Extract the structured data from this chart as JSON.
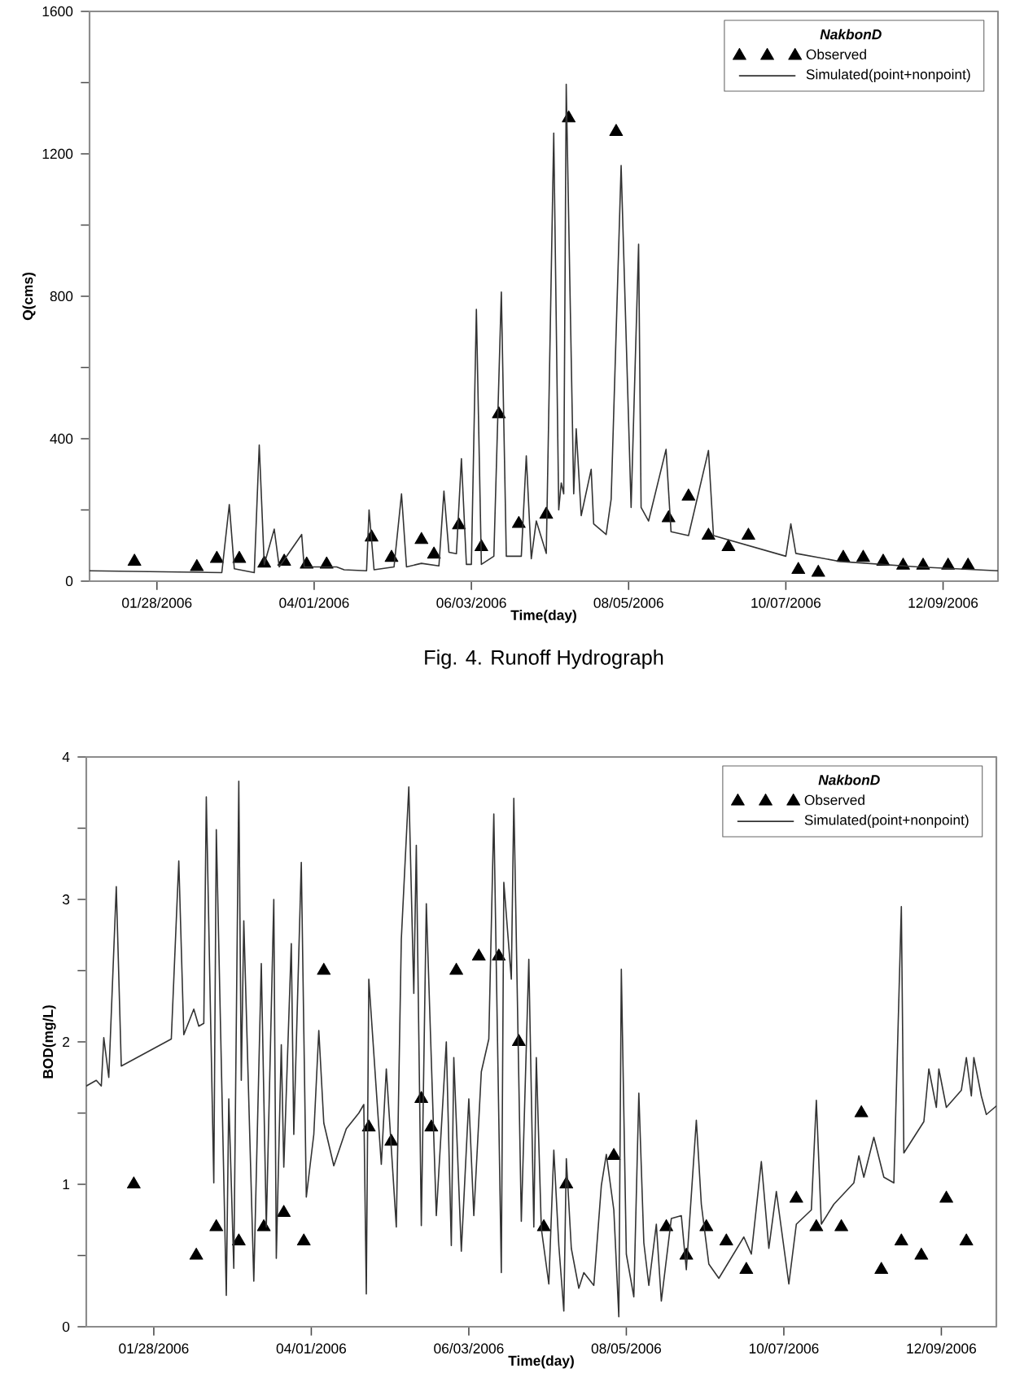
{
  "chart_data": [
    {
      "type": "line",
      "xlabel": "Time(day)",
      "ylabel": "Q(cms)",
      "legend_title": "NakbonD",
      "legend": "top right",
      "annotations": [
        "Fig. 4. Runoff Hydrograph"
      ],
      "xlim": [
        "2006-01-01",
        "2006-12-31"
      ],
      "xticks": [
        {
          "value": "2006-01-28",
          "label": "01/28/2006"
        },
        {
          "value": "2006-04-01",
          "label": "04/01/2006"
        },
        {
          "value": "2006-06-03",
          "label": "06/03/2006"
        },
        {
          "value": "2006-08-05",
          "label": "08/05/2006"
        },
        {
          "value": "2006-10-07",
          "label": "10/07/2006"
        },
        {
          "value": "2006-12-09",
          "label": "12/09/2006"
        }
      ],
      "ylim": [
        0,
        1600
      ],
      "yticks": [
        0,
        {
          "value": 200,
          "label": null
        },
        400,
        {
          "value": 600,
          "label": null
        },
        800,
        {
          "value": 1000,
          "label": null
        },
        1200,
        {
          "value": 1400,
          "label": null
        },
        1600
      ],
      "series": [
        {
          "name": "Observed",
          "type": "scatter",
          "marker": "triangle",
          "color": "#000000",
          "x": [
            "2006-01-19",
            "2006-02-13",
            "2006-02-21",
            "2006-03-02",
            "2006-03-12",
            "2006-03-20",
            "2006-03-29",
            "2006-04-06",
            "2006-04-24",
            "2006-05-02",
            "2006-05-14",
            "2006-05-19",
            "2006-05-29",
            "2006-06-07",
            "2006-06-14",
            "2006-06-22",
            "2006-07-03",
            "2006-07-12",
            "2006-07-31",
            "2006-08-21",
            "2006-08-29",
            "2006-09-06",
            "2006-09-14",
            "2006-09-22",
            "2006-10-12",
            "2006-10-20",
            "2006-10-30",
            "2006-11-07",
            "2006-11-15",
            "2006-11-23",
            "2006-12-01",
            "2006-12-11",
            "2006-12-19"
          ],
          "values": [
            55,
            40,
            63,
            63,
            50,
            55,
            47,
            47,
            123,
            66,
            116,
            75,
            157,
            96,
            469,
            161,
            187,
            1300,
            1262,
            177,
            238,
            128,
            96,
            128,
            32,
            24,
            66,
            66,
            55,
            44,
            44,
            44,
            44
          ]
        },
        {
          "name": "Simulated(point+nonpoint)",
          "marker": "none",
          "line_style": "solid",
          "color": "#333333",
          "x": [
            "2006-01-01",
            "2006-02-23",
            "2006-02-26",
            "2006-02-28",
            "2006-03-08",
            "2006-03-10",
            "2006-03-12",
            "2006-03-16",
            "2006-03-18",
            "2006-03-27",
            "2006-03-28",
            "2006-04-10",
            "2006-04-13",
            "2006-04-22",
            "2006-04-23",
            "2006-04-25",
            "2006-05-03",
            "2006-05-06",
            "2006-05-08",
            "2006-05-14",
            "2006-05-21",
            "2006-05-23",
            "2006-05-25",
            "2006-05-28",
            "2006-05-30",
            "2006-06-01",
            "2006-06-03",
            "2006-06-05",
            "2006-06-07",
            "2006-06-12",
            "2006-06-15",
            "2006-06-17",
            "2006-06-23",
            "2006-06-25",
            "2006-06-27",
            "2006-06-29",
            "2006-07-03",
            "2006-07-06",
            "2006-07-08",
            "2006-07-09",
            "2006-07-10",
            "2006-07-11",
            "2006-07-14",
            "2006-07-15",
            "2006-07-17",
            "2006-07-21",
            "2006-07-22",
            "2006-07-27",
            "2006-07-29",
            "2006-08-02",
            "2006-08-06",
            "2006-08-09",
            "2006-08-10",
            "2006-08-13",
            "2006-08-20",
            "2006-08-22",
            "2006-08-29",
            "2006-09-06",
            "2006-09-08",
            "2006-10-07",
            "2006-10-09",
            "2006-10-11",
            "2006-10-29",
            "2006-11-29",
            "2006-12-31"
          ],
          "values": [
            29,
            24,
            215,
            35,
            24,
            382,
            47,
            146,
            40,
            131,
            40,
            40,
            32,
            29,
            200,
            32,
            40,
            245,
            40,
            50,
            43,
            253,
            81,
            77,
            344,
            47,
            47,
            763,
            47,
            70,
            812,
            70,
            70,
            352,
            63,
            169,
            78,
            1258,
            200,
            276,
            245,
            1395,
            245,
            428,
            184,
            314,
            161,
            131,
            230,
            1167,
            207,
            946,
            207,
            169,
            370,
            139,
            128,
            367,
            128,
            70,
            161,
            78,
            55,
            40,
            29
          ]
        }
      ]
    },
    {
      "type": "line",
      "xlabel": "Time(day)",
      "ylabel": "BOD(mg/L)",
      "legend_title": "NakbonD",
      "legend": "top right",
      "xlim": [
        "2006-01-01",
        "2006-12-31"
      ],
      "xticks": [
        {
          "value": "2006-01-28",
          "label": "01/28/2006"
        },
        {
          "value": "2006-04-01",
          "label": "04/01/2006"
        },
        {
          "value": "2006-06-03",
          "label": "06/03/2006"
        },
        {
          "value": "2006-08-05",
          "label": "08/05/2006"
        },
        {
          "value": "2006-10-07",
          "label": "10/07/2006"
        },
        {
          "value": "2006-12-09",
          "label": "12/09/2006"
        }
      ],
      "ylim": [
        0,
        4
      ],
      "yticks": [
        0,
        {
          "value": 0.5,
          "label": null
        },
        1,
        {
          "value": 1.5,
          "label": null
        },
        2,
        {
          "value": 2.5,
          "label": null
        },
        3,
        {
          "value": 3.5,
          "label": null
        },
        4
      ],
      "series": [
        {
          "name": "Observed",
          "type": "scatter",
          "marker": "triangle",
          "color": "#000000",
          "x": [
            "2006-01-20",
            "2006-02-14",
            "2006-02-22",
            "2006-03-03",
            "2006-03-13",
            "2006-03-21",
            "2006-03-29",
            "2006-04-06",
            "2006-04-24",
            "2006-05-03",
            "2006-05-15",
            "2006-05-19",
            "2006-05-29",
            "2006-06-07",
            "2006-06-15",
            "2006-06-23",
            "2006-07-03",
            "2006-07-12",
            "2006-07-31",
            "2006-08-21",
            "2006-08-29",
            "2006-09-06",
            "2006-09-14",
            "2006-09-22",
            "2006-10-12",
            "2006-10-20",
            "2006-10-30",
            "2006-11-07",
            "2006-11-15",
            "2006-11-23",
            "2006-12-01",
            "2006-12-11",
            "2006-12-19"
          ],
          "values": [
            1.0,
            0.5,
            0.7,
            0.6,
            0.7,
            0.8,
            0.6,
            2.5,
            1.4,
            1.3,
            1.6,
            1.4,
            2.5,
            2.6,
            2.6,
            2.0,
            0.7,
            1.0,
            1.2,
            0.7,
            0.5,
            0.7,
            0.6,
            0.4,
            0.9,
            0.7,
            0.7,
            1.5,
            0.4,
            0.6,
            0.5,
            0.9,
            0.6
          ]
        },
        {
          "name": "Simulated(point+nonpoint)",
          "marker": "none",
          "line_style": "solid",
          "color": "#333333",
          "x": [
            "2006-01-01",
            "2006-01-05",
            "2006-01-07",
            "2006-01-08",
            "2006-01-10",
            "2006-01-13",
            "2006-01-15",
            "2006-02-04",
            "2006-02-07",
            "2006-02-09",
            "2006-02-13",
            "2006-02-15",
            "2006-02-17",
            "2006-02-18",
            "2006-02-21",
            "2006-02-22",
            "2006-02-26",
            "2006-02-27",
            "2006-03-01",
            "2006-03-03",
            "2006-03-04",
            "2006-03-05",
            "2006-03-09",
            "2006-03-12",
            "2006-03-14",
            "2006-03-17",
            "2006-03-18",
            "2006-03-20",
            "2006-03-21",
            "2006-03-24",
            "2006-03-25",
            "2006-03-28",
            "2006-03-30",
            "2006-04-02",
            "2006-04-04",
            "2006-04-06",
            "2006-04-10",
            "2006-04-15",
            "2006-04-20",
            "2006-04-22",
            "2006-04-23",
            "2006-04-24",
            "2006-04-29",
            "2006-05-01",
            "2006-05-05",
            "2006-05-07",
            "2006-05-10",
            "2006-05-12",
            "2006-05-13",
            "2006-05-15",
            "2006-05-17",
            "2006-05-21",
            "2006-05-25",
            "2006-05-27",
            "2006-05-28",
            "2006-05-31",
            "2006-06-03",
            "2006-06-05",
            "2006-06-08",
            "2006-06-11",
            "2006-06-13",
            "2006-06-16",
            "2006-06-17",
            "2006-06-20",
            "2006-06-21",
            "2006-06-24",
            "2006-06-27",
            "2006-06-29",
            "2006-06-30",
            "2006-07-02",
            "2006-07-05",
            "2006-07-07",
            "2006-07-09",
            "2006-07-11",
            "2006-07-12",
            "2006-07-14",
            "2006-07-17",
            "2006-07-19",
            "2006-07-23",
            "2006-07-26",
            "2006-07-28",
            "2006-07-31",
            "2006-08-02",
            "2006-08-03",
            "2006-08-05",
            "2006-08-08",
            "2006-08-10",
            "2006-08-12",
            "2006-08-14",
            "2006-08-17",
            "2006-08-19",
            "2006-08-23",
            "2006-08-27",
            "2006-08-29",
            "2006-09-02",
            "2006-09-04",
            "2006-09-07",
            "2006-09-11",
            "2006-09-21",
            "2006-09-24",
            "2006-09-28",
            "2006-10-01",
            "2006-10-04",
            "2006-10-09",
            "2006-10-12",
            "2006-10-18",
            "2006-10-20",
            "2006-10-22",
            "2006-10-27",
            "2006-11-04",
            "2006-11-06",
            "2006-11-08",
            "2006-11-12",
            "2006-11-16",
            "2006-11-20",
            "2006-11-23",
            "2006-11-24",
            "2006-12-02",
            "2006-12-04",
            "2006-12-07",
            "2006-12-08",
            "2006-12-11",
            "2006-12-17",
            "2006-12-19",
            "2006-12-21",
            "2006-12-22",
            "2006-12-25",
            "2006-12-27",
            "2006-12-31"
          ],
          "values": [
            1.69,
            1.73,
            1.69,
            2.03,
            1.75,
            3.09,
            1.83,
            2.02,
            3.27,
            2.05,
            2.23,
            2.11,
            2.13,
            3.72,
            1.01,
            3.49,
            0.22,
            1.6,
            0.41,
            3.83,
            1.73,
            2.85,
            0.32,
            2.55,
            0.7,
            3.0,
            0.48,
            1.98,
            1.12,
            2.69,
            1.35,
            3.26,
            0.91,
            1.35,
            2.08,
            1.43,
            1.13,
            1.39,
            1.5,
            1.56,
            0.23,
            2.44,
            1.14,
            1.81,
            0.7,
            2.72,
            3.79,
            2.34,
            3.38,
            0.71,
            2.97,
            0.78,
            2.0,
            0.57,
            1.89,
            0.53,
            1.6,
            0.78,
            1.79,
            2.02,
            3.6,
            0.38,
            3.12,
            2.44,
            3.71,
            0.74,
            2.58,
            0.7,
            1.89,
            0.69,
            0.3,
            1.24,
            0.57,
            0.11,
            1.18,
            0.55,
            0.27,
            0.38,
            0.29,
            0.99,
            1.21,
            0.82,
            0.07,
            2.51,
            0.51,
            0.21,
            1.64,
            0.59,
            0.29,
            0.72,
            0.18,
            0.76,
            0.78,
            0.4,
            1.45,
            0.86,
            0.44,
            0.34,
            0.63,
            0.51,
            1.16,
            0.55,
            0.95,
            0.3,
            0.72,
            0.82,
            1.59,
            0.72,
            0.86,
            1.01,
            1.2,
            1.05,
            1.33,
            1.05,
            1.01,
            2.95,
            1.22,
            1.44,
            1.81,
            1.54,
            1.81,
            1.54,
            1.66,
            1.89,
            1.62,
            1.89,
            1.62,
            1.49,
            1.55
          ]
        }
      ]
    }
  ]
}
